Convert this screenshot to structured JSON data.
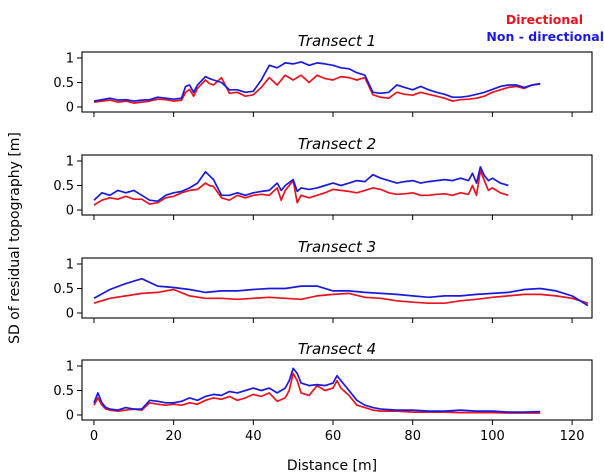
{
  "legend": [
    {
      "label": "Directional",
      "color": "#e8131e"
    },
    {
      "label": "Non - directional",
      "color": "#1a1adf"
    }
  ],
  "xlabel": "Distance [m]",
  "ylabel": "SD of residual topography [m]",
  "chart_data": [
    {
      "type": "line",
      "title": "Transect 1",
      "xlim": [
        -3,
        125
      ],
      "ylim": [
        0,
        1
      ],
      "xticks": [
        0,
        20,
        40,
        60,
        80,
        100,
        120
      ],
      "yticks": [
        0,
        0.5,
        1
      ],
      "series": [
        {
          "name": "Directional",
          "color": "#e8131e",
          "x": [
            0,
            2,
            4,
            6,
            8,
            10,
            12,
            14,
            16,
            18,
            20,
            22,
            23,
            24,
            25,
            26,
            28,
            29,
            30,
            32,
            34,
            36,
            38,
            40,
            42,
            44,
            46,
            48,
            50,
            52,
            54,
            56,
            58,
            60,
            62,
            64,
            66,
            68,
            70,
            72,
            74,
            76,
            78,
            80,
            82,
            84,
            86,
            88,
            90,
            92,
            94,
            96,
            98,
            100,
            102,
            104,
            106,
            108,
            110,
            112
          ],
          "y": [
            0.1,
            0.12,
            0.14,
            0.1,
            0.12,
            0.08,
            0.1,
            0.12,
            0.16,
            0.15,
            0.12,
            0.14,
            0.3,
            0.36,
            0.22,
            0.38,
            0.55,
            0.48,
            0.45,
            0.6,
            0.28,
            0.3,
            0.22,
            0.25,
            0.4,
            0.6,
            0.45,
            0.65,
            0.55,
            0.65,
            0.5,
            0.65,
            0.58,
            0.55,
            0.62,
            0.6,
            0.55,
            0.6,
            0.25,
            0.2,
            0.18,
            0.3,
            0.26,
            0.24,
            0.3,
            0.26,
            0.22,
            0.18,
            0.12,
            0.15,
            0.16,
            0.18,
            0.22,
            0.3,
            0.35,
            0.4,
            0.42,
            0.38,
            0.45,
            0.48
          ]
        },
        {
          "name": "Non - directional",
          "color": "#1a1adf",
          "x": [
            0,
            2,
            4,
            6,
            8,
            10,
            12,
            14,
            16,
            18,
            20,
            22,
            23,
            24,
            25,
            26,
            28,
            29,
            30,
            32,
            34,
            36,
            38,
            40,
            42,
            44,
            46,
            48,
            50,
            52,
            54,
            56,
            58,
            60,
            62,
            64,
            66,
            68,
            70,
            72,
            74,
            76,
            78,
            80,
            82,
            84,
            86,
            88,
            90,
            92,
            94,
            96,
            98,
            100,
            102,
            104,
            106,
            108,
            110,
            112
          ],
          "y": [
            0.12,
            0.15,
            0.18,
            0.14,
            0.15,
            0.12,
            0.14,
            0.15,
            0.2,
            0.18,
            0.16,
            0.18,
            0.42,
            0.45,
            0.3,
            0.45,
            0.62,
            0.58,
            0.55,
            0.5,
            0.35,
            0.35,
            0.3,
            0.32,
            0.55,
            0.85,
            0.8,
            0.9,
            0.88,
            0.92,
            0.85,
            0.9,
            0.88,
            0.85,
            0.8,
            0.78,
            0.7,
            0.65,
            0.3,
            0.28,
            0.3,
            0.45,
            0.4,
            0.35,
            0.42,
            0.35,
            0.3,
            0.26,
            0.2,
            0.2,
            0.22,
            0.26,
            0.3,
            0.36,
            0.42,
            0.45,
            0.45,
            0.4,
            0.45,
            0.47
          ]
        }
      ]
    },
    {
      "type": "line",
      "title": "Transect 2",
      "xlim": [
        -3,
        125
      ],
      "ylim": [
        0,
        1
      ],
      "xticks": [
        0,
        20,
        40,
        60,
        80,
        100,
        120
      ],
      "yticks": [
        0,
        0.5,
        1
      ],
      "series": [
        {
          "name": "Directional",
          "color": "#e8131e",
          "x": [
            0,
            2,
            4,
            6,
            8,
            10,
            12,
            14,
            16,
            18,
            20,
            22,
            24,
            26,
            28,
            29,
            30,
            32,
            34,
            36,
            38,
            40,
            42,
            44,
            46,
            47,
            48,
            50,
            51,
            52,
            54,
            56,
            58,
            60,
            62,
            64,
            66,
            68,
            70,
            72,
            74,
            76,
            78,
            80,
            82,
            84,
            86,
            88,
            90,
            92,
            94,
            95,
            96,
            97,
            98,
            99,
            100,
            102,
            104
          ],
          "y": [
            0.1,
            0.2,
            0.25,
            0.22,
            0.28,
            0.22,
            0.22,
            0.12,
            0.15,
            0.25,
            0.28,
            0.35,
            0.4,
            0.42,
            0.55,
            0.5,
            0.48,
            0.25,
            0.2,
            0.3,
            0.25,
            0.3,
            0.32,
            0.3,
            0.45,
            0.2,
            0.4,
            0.6,
            0.15,
            0.3,
            0.25,
            0.3,
            0.35,
            0.42,
            0.4,
            0.38,
            0.35,
            0.4,
            0.45,
            0.42,
            0.35,
            0.32,
            0.33,
            0.35,
            0.3,
            0.3,
            0.32,
            0.33,
            0.3,
            0.35,
            0.32,
            0.5,
            0.3,
            0.8,
            0.6,
            0.4,
            0.45,
            0.35,
            0.3
          ]
        },
        {
          "name": "Non - directional",
          "color": "#1a1adf",
          "x": [
            0,
            2,
            4,
            6,
            8,
            10,
            12,
            14,
            16,
            18,
            20,
            22,
            24,
            26,
            28,
            29,
            30,
            32,
            34,
            36,
            38,
            40,
            42,
            44,
            46,
            47,
            48,
            50,
            51,
            52,
            54,
            56,
            58,
            60,
            62,
            64,
            66,
            68,
            70,
            72,
            74,
            76,
            78,
            80,
            82,
            84,
            86,
            88,
            90,
            92,
            94,
            95,
            96,
            97,
            98,
            99,
            100,
            102,
            104
          ],
          "y": [
            0.2,
            0.35,
            0.3,
            0.4,
            0.35,
            0.4,
            0.3,
            0.2,
            0.18,
            0.3,
            0.35,
            0.38,
            0.45,
            0.55,
            0.78,
            0.7,
            0.62,
            0.3,
            0.3,
            0.35,
            0.3,
            0.35,
            0.38,
            0.4,
            0.55,
            0.4,
            0.5,
            0.62,
            0.38,
            0.45,
            0.42,
            0.45,
            0.5,
            0.55,
            0.5,
            0.55,
            0.6,
            0.58,
            0.72,
            0.65,
            0.6,
            0.55,
            0.58,
            0.6,
            0.55,
            0.58,
            0.6,
            0.62,
            0.6,
            0.65,
            0.6,
            0.75,
            0.55,
            0.88,
            0.7,
            0.6,
            0.65,
            0.55,
            0.5
          ]
        }
      ]
    },
    {
      "type": "line",
      "title": "Transect 3",
      "xlim": [
        -3,
        125
      ],
      "ylim": [
        0,
        1
      ],
      "xticks": [
        0,
        20,
        40,
        60,
        80,
        100,
        120
      ],
      "yticks": [
        0,
        0.5,
        1
      ],
      "series": [
        {
          "name": "Directional",
          "color": "#e8131e",
          "x": [
            0,
            4,
            8,
            12,
            16,
            20,
            24,
            28,
            32,
            36,
            40,
            44,
            48,
            52,
            56,
            60,
            64,
            68,
            72,
            76,
            80,
            84,
            88,
            92,
            96,
            100,
            104,
            108,
            112,
            116,
            120,
            124
          ],
          "y": [
            0.2,
            0.3,
            0.35,
            0.4,
            0.42,
            0.48,
            0.35,
            0.3,
            0.3,
            0.28,
            0.3,
            0.32,
            0.3,
            0.28,
            0.35,
            0.38,
            0.4,
            0.32,
            0.3,
            0.25,
            0.22,
            0.2,
            0.2,
            0.25,
            0.28,
            0.32,
            0.35,
            0.38,
            0.38,
            0.35,
            0.3,
            0.2
          ]
        },
        {
          "name": "Non - directional",
          "color": "#1a1adf",
          "x": [
            0,
            4,
            8,
            12,
            16,
            20,
            24,
            28,
            32,
            36,
            40,
            44,
            48,
            52,
            56,
            60,
            64,
            68,
            72,
            76,
            80,
            84,
            88,
            92,
            96,
            100,
            104,
            108,
            112,
            116,
            120,
            124
          ],
          "y": [
            0.3,
            0.48,
            0.6,
            0.7,
            0.55,
            0.52,
            0.48,
            0.42,
            0.45,
            0.45,
            0.48,
            0.5,
            0.5,
            0.55,
            0.55,
            0.45,
            0.45,
            0.42,
            0.4,
            0.38,
            0.35,
            0.32,
            0.35,
            0.35,
            0.38,
            0.4,
            0.42,
            0.48,
            0.5,
            0.45,
            0.35,
            0.15
          ]
        }
      ]
    },
    {
      "type": "line",
      "title": "Transect 4",
      "xlim": [
        -3,
        125
      ],
      "ylim": [
        0,
        1
      ],
      "xticks": [
        0,
        20,
        40,
        60,
        80,
        100,
        120
      ],
      "yticks": [
        0,
        0.5,
        1
      ],
      "series": [
        {
          "name": "Directional",
          "color": "#e8131e",
          "x": [
            0,
            1,
            2,
            3,
            4,
            6,
            8,
            10,
            12,
            14,
            16,
            18,
            20,
            22,
            24,
            26,
            28,
            30,
            32,
            34,
            36,
            38,
            40,
            42,
            44,
            46,
            48,
            49,
            50,
            51,
            52,
            54,
            56,
            58,
            60,
            61,
            62,
            64,
            66,
            68,
            70,
            72,
            76,
            80,
            84,
            88,
            92,
            96,
            100,
            104,
            108,
            112
          ],
          "y": [
            0.2,
            0.35,
            0.2,
            0.12,
            0.1,
            0.08,
            0.1,
            0.12,
            0.1,
            0.25,
            0.22,
            0.2,
            0.22,
            0.2,
            0.25,
            0.22,
            0.3,
            0.35,
            0.32,
            0.38,
            0.3,
            0.35,
            0.42,
            0.38,
            0.45,
            0.28,
            0.35,
            0.5,
            0.85,
            0.7,
            0.45,
            0.4,
            0.6,
            0.5,
            0.55,
            0.7,
            0.55,
            0.4,
            0.2,
            0.15,
            0.1,
            0.08,
            0.08,
            0.06,
            0.06,
            0.06,
            0.05,
            0.05,
            0.05,
            0.04,
            0.04,
            0.04
          ]
        },
        {
          "name": "Non - directional",
          "color": "#1a1adf",
          "x": [
            0,
            1,
            2,
            3,
            4,
            6,
            8,
            10,
            12,
            14,
            16,
            18,
            20,
            22,
            24,
            26,
            28,
            30,
            32,
            34,
            36,
            38,
            40,
            42,
            44,
            46,
            48,
            49,
            50,
            51,
            52,
            54,
            56,
            58,
            60,
            61,
            62,
            64,
            66,
            68,
            70,
            72,
            76,
            80,
            84,
            88,
            92,
            96,
            100,
            104,
            108,
            112
          ],
          "y": [
            0.25,
            0.45,
            0.25,
            0.15,
            0.12,
            0.1,
            0.15,
            0.12,
            0.12,
            0.3,
            0.28,
            0.25,
            0.25,
            0.28,
            0.35,
            0.3,
            0.38,
            0.42,
            0.4,
            0.48,
            0.45,
            0.5,
            0.55,
            0.5,
            0.55,
            0.45,
            0.55,
            0.7,
            0.95,
            0.85,
            0.65,
            0.6,
            0.62,
            0.6,
            0.65,
            0.8,
            0.7,
            0.5,
            0.3,
            0.2,
            0.15,
            0.12,
            0.1,
            0.1,
            0.08,
            0.08,
            0.1,
            0.08,
            0.08,
            0.06,
            0.06,
            0.07
          ]
        }
      ]
    }
  ]
}
